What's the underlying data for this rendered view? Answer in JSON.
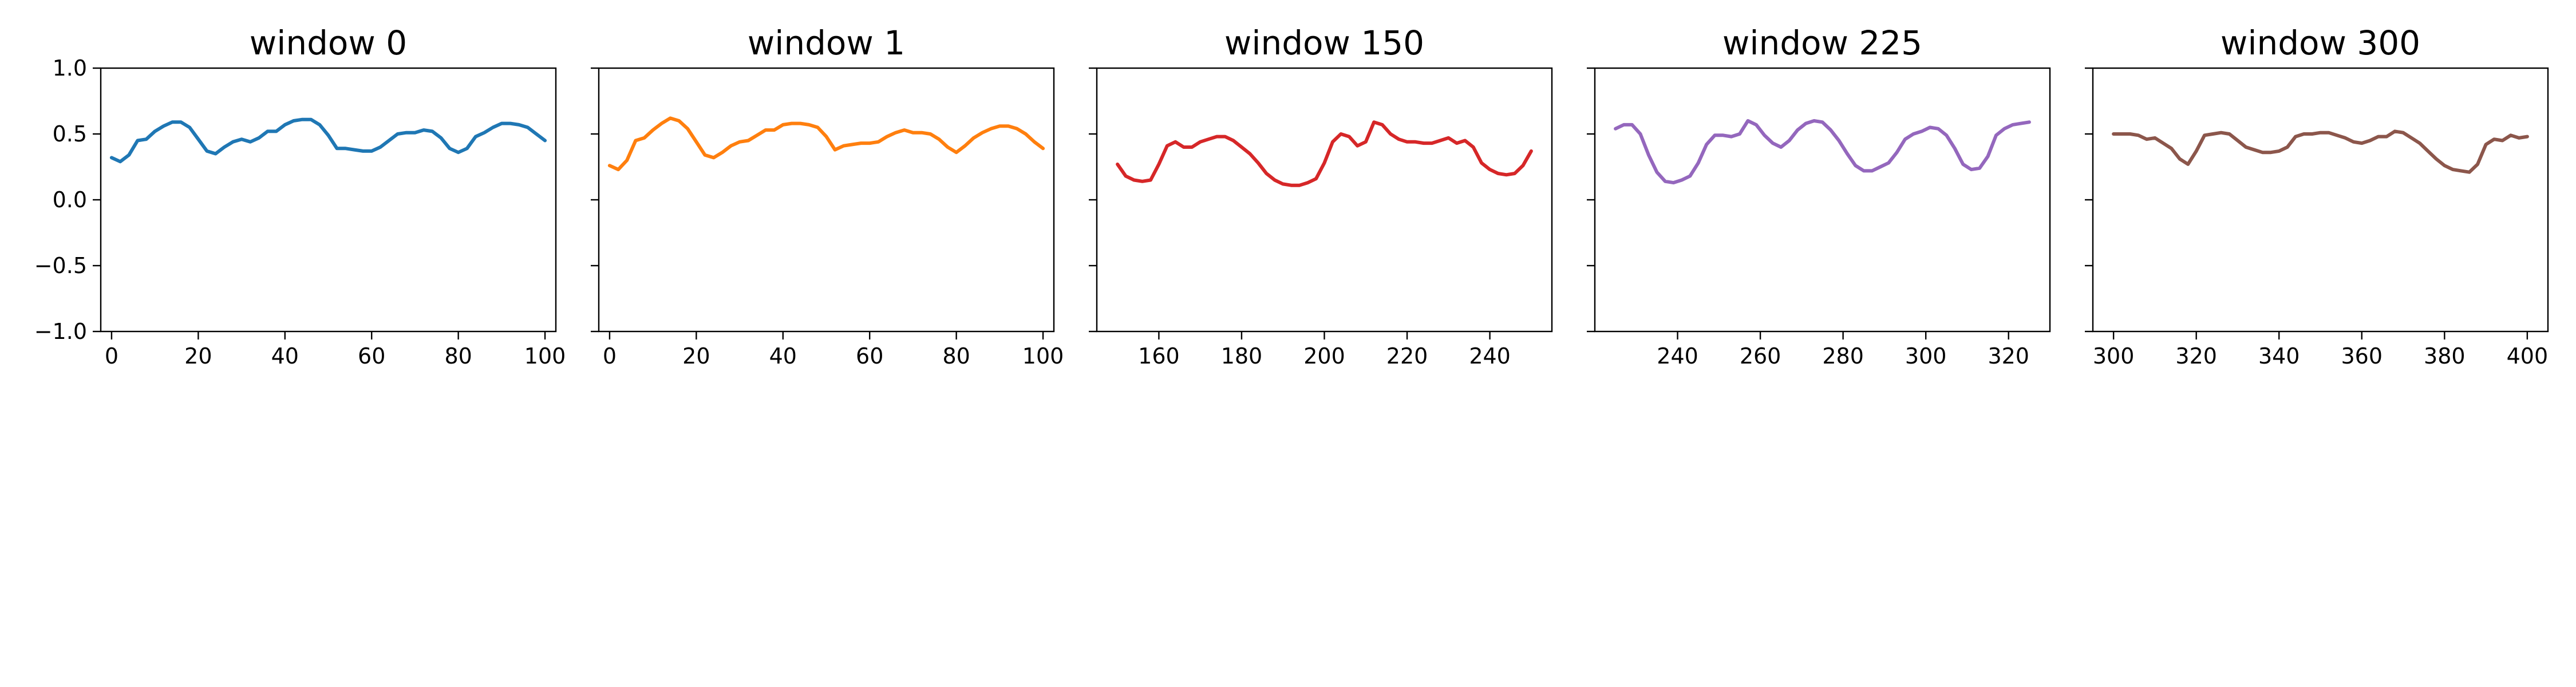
{
  "chart_data": [
    {
      "type": "line",
      "title": "window 0",
      "xlim": [
        -2.5,
        102.5
      ],
      "ylim": [
        -1.0,
        1.0
      ],
      "xticks": [
        0,
        20,
        40,
        60,
        80,
        100
      ],
      "yticks": [
        -1.0,
        -0.5,
        0.0,
        0.5,
        1.0
      ],
      "ytick_labels": [
        "−1.0",
        "−0.5",
        "0.0",
        "0.5",
        "1.0"
      ],
      "show_ytick_labels": true,
      "color": "#1f77b4",
      "series": [
        {
          "x": [
            0,
            2,
            4,
            6,
            8,
            10,
            12,
            14,
            16,
            18,
            20,
            22,
            24,
            26,
            28,
            30,
            32,
            34,
            36,
            38,
            40,
            42,
            44,
            46,
            48,
            50,
            52,
            54,
            56,
            58,
            60,
            62,
            64,
            66,
            68,
            70,
            72,
            74,
            76,
            78,
            80,
            82,
            84,
            86,
            88,
            90,
            92,
            94,
            96,
            98,
            100
          ],
          "values": [
            0.32,
            0.29,
            0.34,
            0.45,
            0.46,
            0.52,
            0.56,
            0.59,
            0.59,
            0.55,
            0.46,
            0.37,
            0.35,
            0.4,
            0.44,
            0.46,
            0.44,
            0.47,
            0.52,
            0.52,
            0.57,
            0.6,
            0.61,
            0.61,
            0.57,
            0.49,
            0.39,
            0.39,
            0.38,
            0.37,
            0.37,
            0.4,
            0.45,
            0.5,
            0.51,
            0.51,
            0.53,
            0.52,
            0.47,
            0.39,
            0.36,
            0.39,
            0.48,
            0.51,
            0.55,
            0.58,
            0.58,
            0.57,
            0.55,
            0.5,
            0.45
          ]
        }
      ]
    },
    {
      "type": "line",
      "title": "window 1",
      "xlim": [
        -2.5,
        102.5
      ],
      "ylim": [
        -1.0,
        1.0
      ],
      "xticks": [
        0,
        20,
        40,
        60,
        80,
        100
      ],
      "yticks": [
        -1.0,
        -0.5,
        0.0,
        0.5,
        1.0
      ],
      "ytick_labels": [
        "",
        "",
        "",
        "",
        ""
      ],
      "show_ytick_labels": false,
      "color": "#ff7f0e",
      "series": [
        {
          "x": [
            0,
            2,
            4,
            6,
            8,
            10,
            12,
            14,
            16,
            18,
            20,
            22,
            24,
            26,
            28,
            30,
            32,
            34,
            36,
            38,
            40,
            42,
            44,
            46,
            48,
            50,
            52,
            54,
            56,
            58,
            60,
            62,
            64,
            66,
            68,
            70,
            72,
            74,
            76,
            78,
            80,
            82,
            84,
            86,
            88,
            90,
            92,
            94,
            96,
            98,
            100
          ],
          "values": [
            0.26,
            0.23,
            0.3,
            0.45,
            0.47,
            0.53,
            0.58,
            0.62,
            0.6,
            0.54,
            0.44,
            0.34,
            0.32,
            0.36,
            0.41,
            0.44,
            0.45,
            0.49,
            0.53,
            0.53,
            0.57,
            0.58,
            0.58,
            0.57,
            0.55,
            0.48,
            0.38,
            0.41,
            0.42,
            0.43,
            0.43,
            0.44,
            0.48,
            0.51,
            0.53,
            0.51,
            0.51,
            0.5,
            0.46,
            0.4,
            0.36,
            0.41,
            0.47,
            0.51,
            0.54,
            0.56,
            0.56,
            0.54,
            0.5,
            0.44,
            0.39
          ]
        }
      ]
    },
    {
      "type": "line",
      "title": "window 150",
      "xlim": [
        145,
        255
      ],
      "ylim": [
        -1.0,
        1.0
      ],
      "xticks": [
        160,
        180,
        200,
        220,
        240
      ],
      "yticks": [
        -1.0,
        -0.5,
        0.0,
        0.5,
        1.0
      ],
      "ytick_labels": [
        "",
        "",
        "",
        "",
        ""
      ],
      "show_ytick_labels": false,
      "color": "#d62728",
      "series": [
        {
          "x": [
            150,
            152,
            154,
            156,
            158,
            160,
            162,
            164,
            166,
            168,
            170,
            172,
            174,
            176,
            178,
            180,
            182,
            184,
            186,
            188,
            190,
            192,
            194,
            196,
            198,
            200,
            202,
            204,
            206,
            208,
            210,
            212,
            214,
            216,
            218,
            220,
            222,
            224,
            226,
            228,
            230,
            232,
            234,
            236,
            238,
            240,
            242,
            244,
            246,
            248,
            250
          ],
          "values": [
            0.27,
            0.18,
            0.15,
            0.14,
            0.15,
            0.27,
            0.41,
            0.44,
            0.4,
            0.4,
            0.44,
            0.46,
            0.48,
            0.48,
            0.45,
            0.4,
            0.35,
            0.28,
            0.2,
            0.15,
            0.12,
            0.11,
            0.11,
            0.13,
            0.16,
            0.28,
            0.44,
            0.5,
            0.48,
            0.41,
            0.44,
            0.59,
            0.57,
            0.5,
            0.46,
            0.44,
            0.44,
            0.43,
            0.43,
            0.45,
            0.47,
            0.43,
            0.45,
            0.4,
            0.28,
            0.23,
            0.2,
            0.19,
            0.2,
            0.26,
            0.37
          ]
        }
      ]
    },
    {
      "type": "line",
      "title": "window 225",
      "xlim": [
        220,
        330
      ],
      "ylim": [
        -1.0,
        1.0
      ],
      "xticks": [
        240,
        260,
        280,
        300,
        320
      ],
      "yticks": [
        -1.0,
        -0.5,
        0.0,
        0.5,
        1.0
      ],
      "ytick_labels": [
        "",
        "",
        "",
        "",
        ""
      ],
      "show_ytick_labels": false,
      "color": "#9467bd",
      "series": [
        {
          "x": [
            225,
            227,
            229,
            231,
            233,
            235,
            237,
            239,
            241,
            243,
            245,
            247,
            249,
            251,
            253,
            255,
            257,
            259,
            261,
            263,
            265,
            267,
            269,
            271,
            273,
            275,
            277,
            279,
            281,
            283,
            285,
            287,
            289,
            291,
            293,
            295,
            297,
            299,
            301,
            303,
            305,
            307,
            309,
            311,
            313,
            315,
            317,
            319,
            321,
            323,
            325
          ],
          "values": [
            0.54,
            0.57,
            0.57,
            0.5,
            0.34,
            0.21,
            0.14,
            0.13,
            0.15,
            0.18,
            0.28,
            0.42,
            0.49,
            0.49,
            0.48,
            0.5,
            0.6,
            0.57,
            0.49,
            0.43,
            0.4,
            0.45,
            0.53,
            0.58,
            0.6,
            0.59,
            0.53,
            0.45,
            0.35,
            0.26,
            0.22,
            0.22,
            0.25,
            0.28,
            0.36,
            0.46,
            0.5,
            0.52,
            0.55,
            0.54,
            0.49,
            0.39,
            0.27,
            0.23,
            0.24,
            0.33,
            0.49,
            0.54,
            0.57,
            0.58,
            0.59
          ]
        }
      ]
    },
    {
      "type": "line",
      "title": "window 300",
      "xlim": [
        295,
        405
      ],
      "ylim": [
        -1.0,
        1.0
      ],
      "xticks": [
        300,
        320,
        340,
        360,
        380,
        400
      ],
      "yticks": [
        -1.0,
        -0.5,
        0.0,
        0.5,
        1.0
      ],
      "ytick_labels": [
        "",
        "",
        "",
        "",
        ""
      ],
      "show_ytick_labels": false,
      "color": "#8c564b",
      "series": [
        {
          "x": [
            300,
            302,
            304,
            306,
            308,
            310,
            312,
            314,
            316,
            318,
            320,
            322,
            324,
            326,
            328,
            330,
            332,
            334,
            336,
            338,
            340,
            342,
            344,
            346,
            348,
            350,
            352,
            354,
            356,
            358,
            360,
            362,
            364,
            366,
            368,
            370,
            372,
            374,
            376,
            378,
            380,
            382,
            384,
            386,
            388,
            390,
            392,
            394,
            396,
            398,
            400
          ],
          "values": [
            0.5,
            0.5,
            0.5,
            0.49,
            0.46,
            0.47,
            0.43,
            0.39,
            0.31,
            0.27,
            0.37,
            0.49,
            0.5,
            0.51,
            0.5,
            0.45,
            0.4,
            0.38,
            0.36,
            0.36,
            0.37,
            0.4,
            0.48,
            0.5,
            0.5,
            0.51,
            0.51,
            0.49,
            0.47,
            0.44,
            0.43,
            0.45,
            0.48,
            0.48,
            0.52,
            0.51,
            0.47,
            0.43,
            0.37,
            0.31,
            0.26,
            0.23,
            0.22,
            0.21,
            0.27,
            0.42,
            0.46,
            0.45,
            0.49,
            0.47,
            0.48
          ]
        }
      ]
    }
  ]
}
